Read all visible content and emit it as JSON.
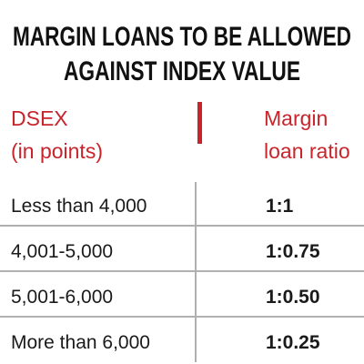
{
  "title": [
    "MARGIN LOANS TO BE ALLOWED",
    "AGAINST INDEX VALUE"
  ],
  "table": {
    "header": [
      [
        "DSEX",
        "(in points)"
      ],
      [
        "Margin",
        "loan ratio"
      ]
    ],
    "rows": [
      [
        "Less than 4,000",
        "1:1"
      ],
      [
        "4,001-5,000",
        "1:0.75"
      ],
      [
        "5,001-6,000",
        "1:0.50"
      ],
      [
        "More than 6,000",
        "1:0.25"
      ]
    ]
  }
}
